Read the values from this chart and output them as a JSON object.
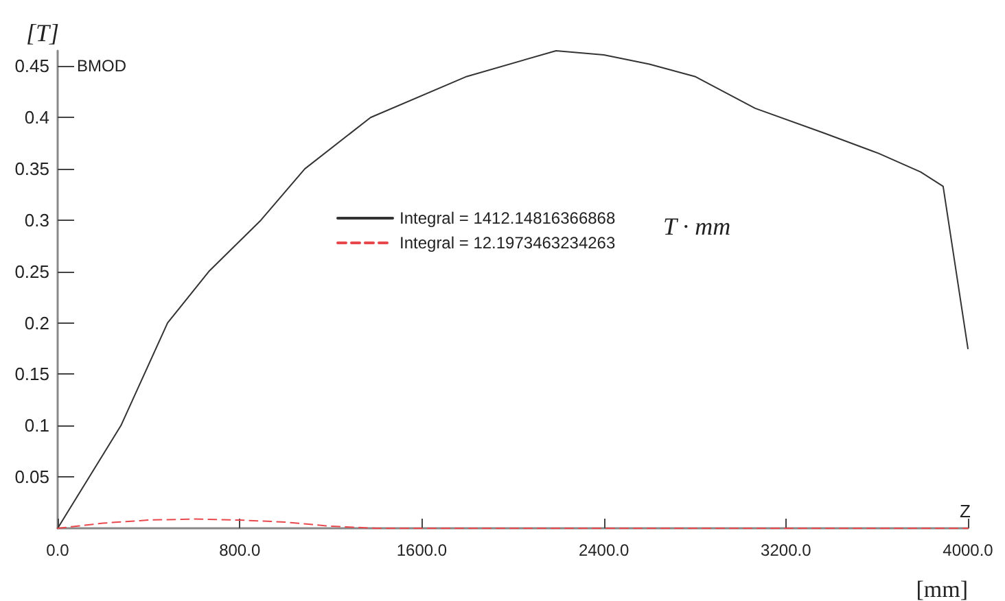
{
  "chart_data": {
    "type": "line",
    "xlabel": "[mm]",
    "ylabel": "[T]",
    "annotations": [
      "BMOD",
      "Z",
      "T · mm"
    ],
    "xlim": [
      0,
      4000
    ],
    "ylim": [
      0,
      0.465
    ],
    "xticks": [
      {
        "value": 0,
        "label": "0.0"
      },
      {
        "value": 800,
        "label": "800.0"
      },
      {
        "value": 1600,
        "label": "1600.0"
      },
      {
        "value": 2400,
        "label": "2400.0"
      },
      {
        "value": 3200,
        "label": "3200.0"
      },
      {
        "value": 4000,
        "label": "4000.0"
      }
    ],
    "yticks": [
      0.05,
      0.1,
      0.15,
      0.2,
      0.25,
      0.3,
      0.35,
      0.4,
      0.45
    ],
    "grid": false,
    "legend": "center",
    "marker": "none",
    "series": [
      {
        "name": "Integral = 1412.14816366868",
        "color": "#333333",
        "line_style": "solid",
        "x": [
          0,
          278,
          483,
          664,
          893,
          1086,
          1375,
          1798,
          2190,
          2400,
          2600,
          2800,
          3065,
          3366,
          3608,
          3792,
          3891,
          4000
        ],
        "values": [
          0,
          0.1,
          0.2,
          0.25,
          0.3,
          0.35,
          0.4,
          0.44,
          0.465,
          0.461,
          0.452,
          0.44,
          0.409,
          0.385,
          0.365,
          0.347,
          0.333,
          0.175
        ]
      },
      {
        "name": "Integral = 12.1973463234263",
        "color": "#e8474c",
        "line_style": "dashed",
        "x": [
          0,
          200,
          400,
          600,
          800,
          1000,
          1200,
          1400,
          2000,
          3000,
          4000
        ],
        "values": [
          0,
          0.005,
          0.008,
          0.009,
          0.008,
          0.006,
          0.002,
          0,
          0,
          0,
          0
        ]
      }
    ]
  }
}
